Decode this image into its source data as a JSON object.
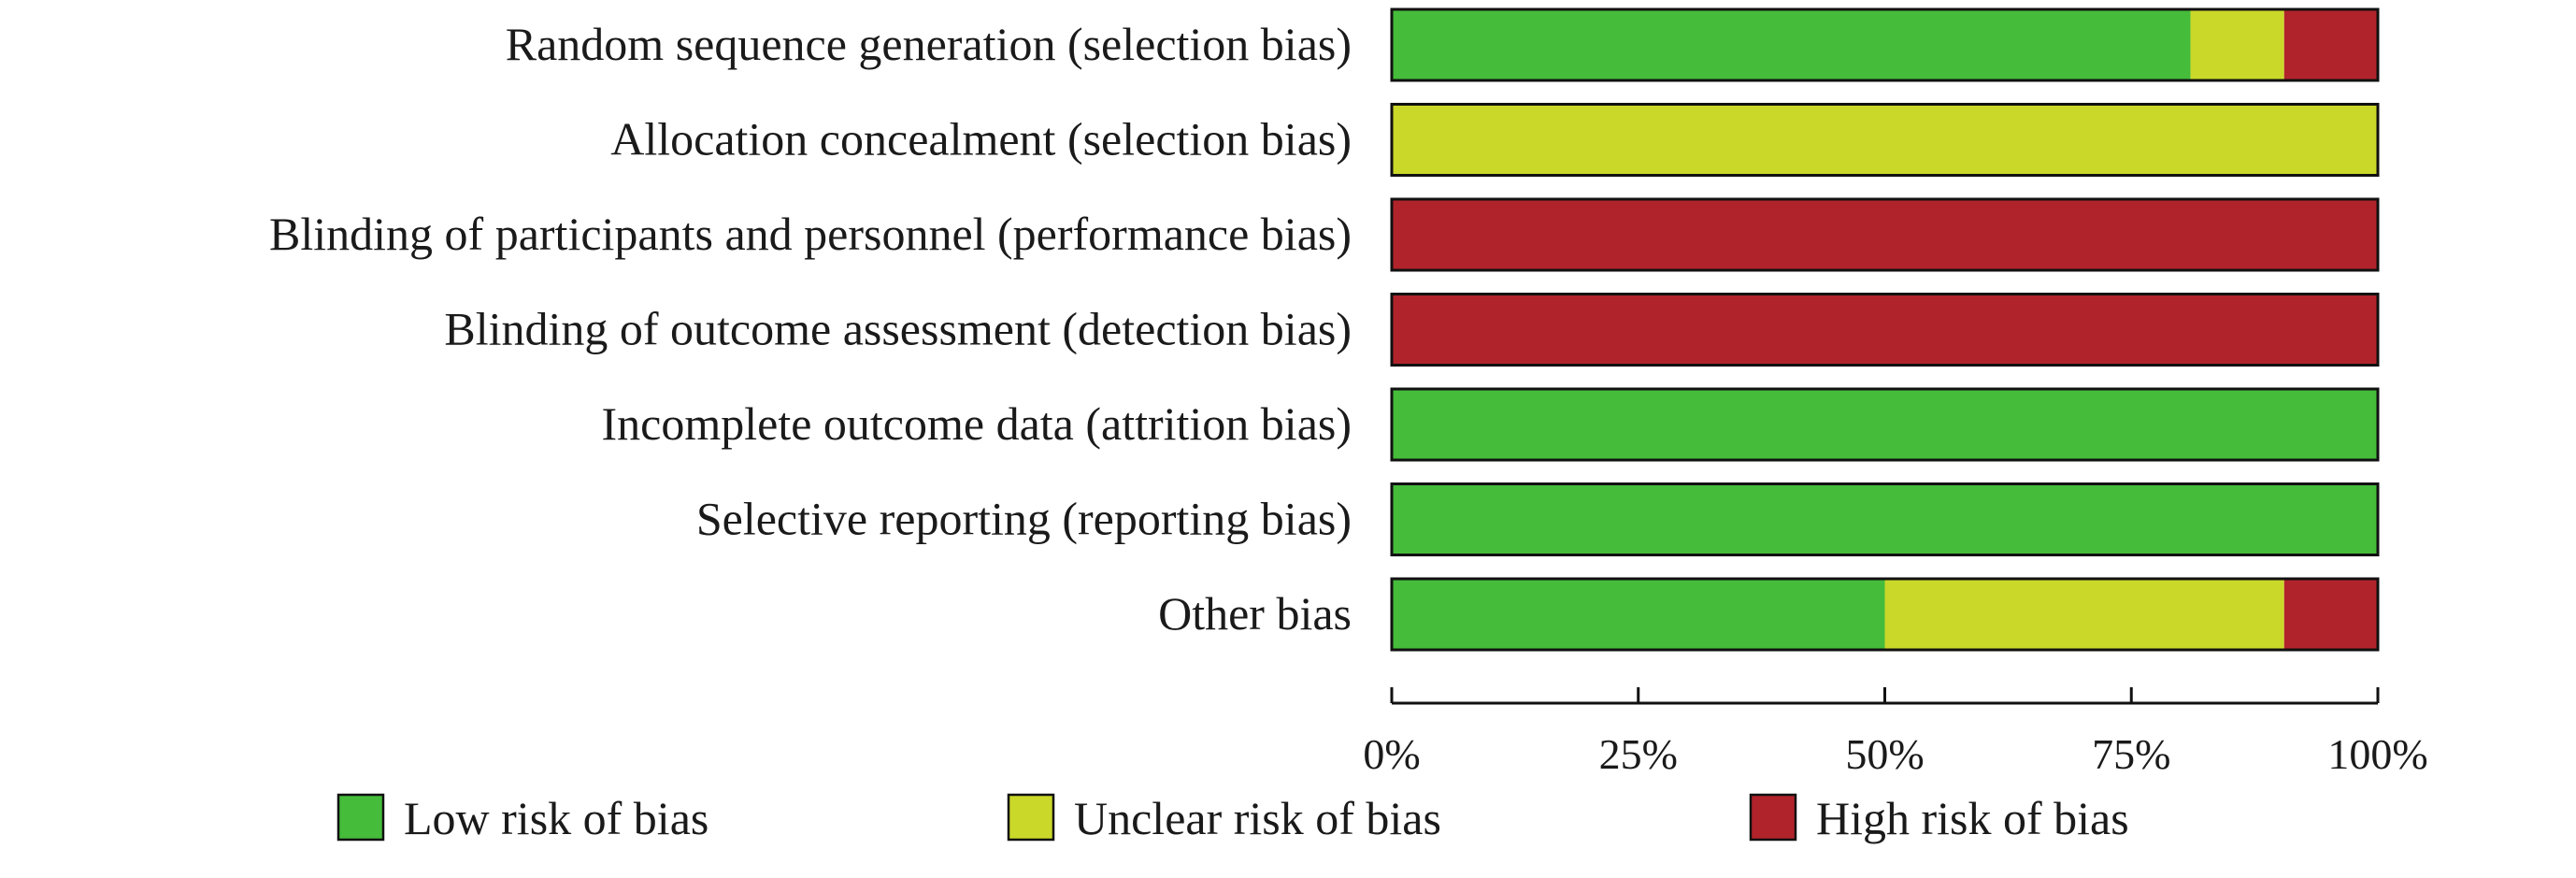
{
  "chart_data": {
    "type": "bar",
    "orientation": "horizontal",
    "stacked": true,
    "title": "",
    "xlabel": "",
    "ylabel": "",
    "xlim": [
      0,
      100
    ],
    "categories": [
      "Random sequence generation (selection bias)",
      "Allocation concealment (selection bias)",
      "Blinding of participants and personnel (performance bias)",
      "Blinding of outcome assessment (detection bias)",
      "Incomplete outcome data (attrition bias)",
      "Selective reporting (reporting bias)",
      "Other bias"
    ],
    "series": [
      {
        "name": "Low risk of bias",
        "color": "#45bc3a",
        "values": [
          81,
          0,
          0,
          0,
          100,
          100,
          50
        ]
      },
      {
        "name": "Unclear risk of bias",
        "color": "#cad829",
        "values": [
          9.5,
          100,
          0,
          0,
          0,
          0,
          40.5
        ]
      },
      {
        "name": "High risk of bias",
        "color": "#b1232b",
        "values": [
          9.5,
          0,
          100,
          100,
          0,
          0,
          9.5
        ]
      }
    ],
    "x_ticks": [
      "0%",
      "25%",
      "50%",
      "75%",
      "100%"
    ],
    "x_tick_values": [
      0,
      25,
      50,
      75,
      100
    ],
    "legend_position": "bottom",
    "grid": false
  }
}
